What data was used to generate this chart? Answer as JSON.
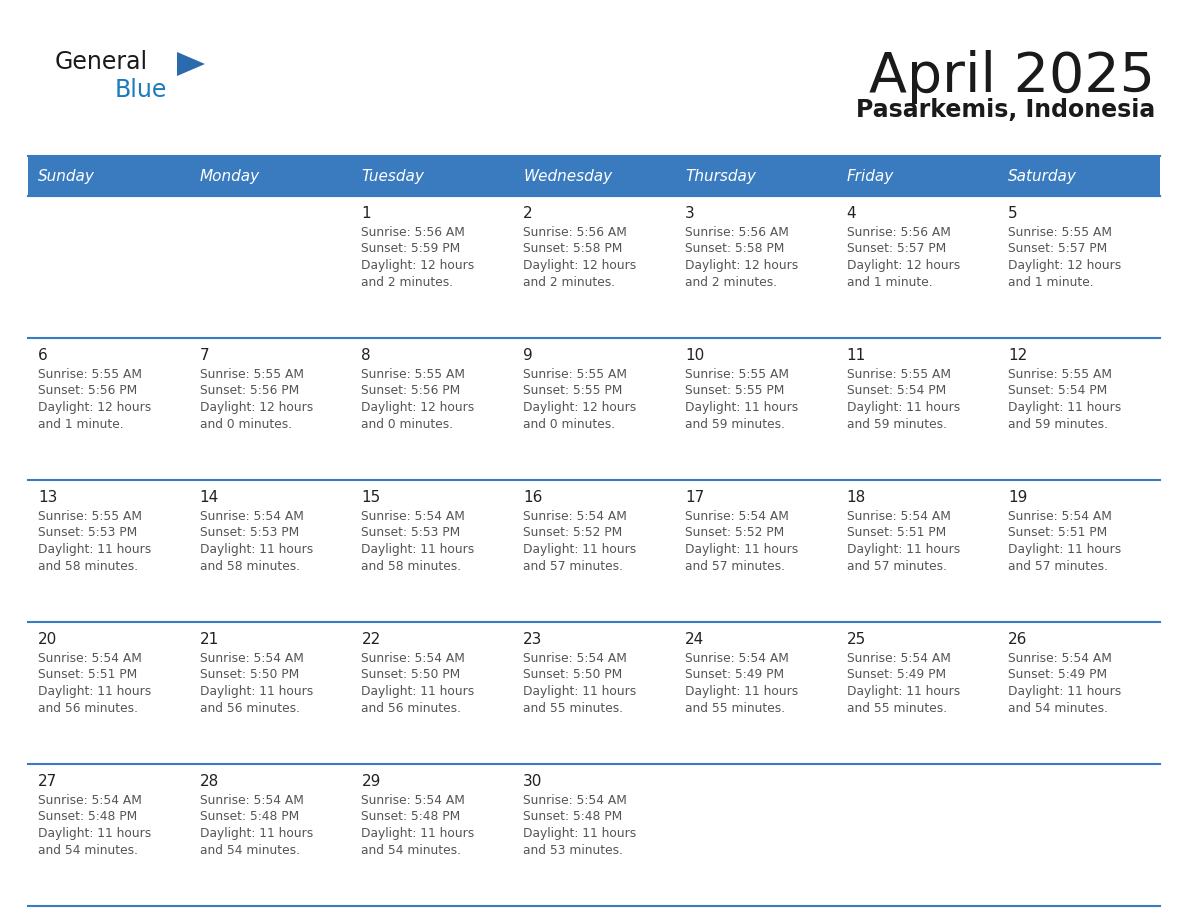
{
  "title": "April 2025",
  "subtitle": "Pasarkemis, Indonesia",
  "header_bg_color": "#3a7bbf",
  "header_text_color": "#ffffff",
  "border_color": "#3a7bbf",
  "day_names": [
    "Sunday",
    "Monday",
    "Tuesday",
    "Wednesday",
    "Thursday",
    "Friday",
    "Saturday"
  ],
  "title_color": "#1a1a1a",
  "subtitle_color": "#1a1a1a",
  "day_number_color": "#222222",
  "cell_text_color": "#555555",
  "logo_text_color": "#1a1a1a",
  "logo_blue_color": "#1a7bbf",
  "logo_triangle_color": "#2a6aad",
  "days": [
    {
      "day": 1,
      "col": 2,
      "row": 0,
      "sunrise": "5:56 AM",
      "sunset": "5:59 PM",
      "daylight_line1": "Daylight: 12 hours",
      "daylight_line2": "and 2 minutes."
    },
    {
      "day": 2,
      "col": 3,
      "row": 0,
      "sunrise": "5:56 AM",
      "sunset": "5:58 PM",
      "daylight_line1": "Daylight: 12 hours",
      "daylight_line2": "and 2 minutes."
    },
    {
      "day": 3,
      "col": 4,
      "row": 0,
      "sunrise": "5:56 AM",
      "sunset": "5:58 PM",
      "daylight_line1": "Daylight: 12 hours",
      "daylight_line2": "and 2 minutes."
    },
    {
      "day": 4,
      "col": 5,
      "row": 0,
      "sunrise": "5:56 AM",
      "sunset": "5:57 PM",
      "daylight_line1": "Daylight: 12 hours",
      "daylight_line2": "and 1 minute."
    },
    {
      "day": 5,
      "col": 6,
      "row": 0,
      "sunrise": "5:55 AM",
      "sunset": "5:57 PM",
      "daylight_line1": "Daylight: 12 hours",
      "daylight_line2": "and 1 minute."
    },
    {
      "day": 6,
      "col": 0,
      "row": 1,
      "sunrise": "5:55 AM",
      "sunset": "5:56 PM",
      "daylight_line1": "Daylight: 12 hours",
      "daylight_line2": "and 1 minute."
    },
    {
      "day": 7,
      "col": 1,
      "row": 1,
      "sunrise": "5:55 AM",
      "sunset": "5:56 PM",
      "daylight_line1": "Daylight: 12 hours",
      "daylight_line2": "and 0 minutes."
    },
    {
      "day": 8,
      "col": 2,
      "row": 1,
      "sunrise": "5:55 AM",
      "sunset": "5:56 PM",
      "daylight_line1": "Daylight: 12 hours",
      "daylight_line2": "and 0 minutes."
    },
    {
      "day": 9,
      "col": 3,
      "row": 1,
      "sunrise": "5:55 AM",
      "sunset": "5:55 PM",
      "daylight_line1": "Daylight: 12 hours",
      "daylight_line2": "and 0 minutes."
    },
    {
      "day": 10,
      "col": 4,
      "row": 1,
      "sunrise": "5:55 AM",
      "sunset": "5:55 PM",
      "daylight_line1": "Daylight: 11 hours",
      "daylight_line2": "and 59 minutes."
    },
    {
      "day": 11,
      "col": 5,
      "row": 1,
      "sunrise": "5:55 AM",
      "sunset": "5:54 PM",
      "daylight_line1": "Daylight: 11 hours",
      "daylight_line2": "and 59 minutes."
    },
    {
      "day": 12,
      "col": 6,
      "row": 1,
      "sunrise": "5:55 AM",
      "sunset": "5:54 PM",
      "daylight_line1": "Daylight: 11 hours",
      "daylight_line2": "and 59 minutes."
    },
    {
      "day": 13,
      "col": 0,
      "row": 2,
      "sunrise": "5:55 AM",
      "sunset": "5:53 PM",
      "daylight_line1": "Daylight: 11 hours",
      "daylight_line2": "and 58 minutes."
    },
    {
      "day": 14,
      "col": 1,
      "row": 2,
      "sunrise": "5:54 AM",
      "sunset": "5:53 PM",
      "daylight_line1": "Daylight: 11 hours",
      "daylight_line2": "and 58 minutes."
    },
    {
      "day": 15,
      "col": 2,
      "row": 2,
      "sunrise": "5:54 AM",
      "sunset": "5:53 PM",
      "daylight_line1": "Daylight: 11 hours",
      "daylight_line2": "and 58 minutes."
    },
    {
      "day": 16,
      "col": 3,
      "row": 2,
      "sunrise": "5:54 AM",
      "sunset": "5:52 PM",
      "daylight_line1": "Daylight: 11 hours",
      "daylight_line2": "and 57 minutes."
    },
    {
      "day": 17,
      "col": 4,
      "row": 2,
      "sunrise": "5:54 AM",
      "sunset": "5:52 PM",
      "daylight_line1": "Daylight: 11 hours",
      "daylight_line2": "and 57 minutes."
    },
    {
      "day": 18,
      "col": 5,
      "row": 2,
      "sunrise": "5:54 AM",
      "sunset": "5:51 PM",
      "daylight_line1": "Daylight: 11 hours",
      "daylight_line2": "and 57 minutes."
    },
    {
      "day": 19,
      "col": 6,
      "row": 2,
      "sunrise": "5:54 AM",
      "sunset": "5:51 PM",
      "daylight_line1": "Daylight: 11 hours",
      "daylight_line2": "and 57 minutes."
    },
    {
      "day": 20,
      "col": 0,
      "row": 3,
      "sunrise": "5:54 AM",
      "sunset": "5:51 PM",
      "daylight_line1": "Daylight: 11 hours",
      "daylight_line2": "and 56 minutes."
    },
    {
      "day": 21,
      "col": 1,
      "row": 3,
      "sunrise": "5:54 AM",
      "sunset": "5:50 PM",
      "daylight_line1": "Daylight: 11 hours",
      "daylight_line2": "and 56 minutes."
    },
    {
      "day": 22,
      "col": 2,
      "row": 3,
      "sunrise": "5:54 AM",
      "sunset": "5:50 PM",
      "daylight_line1": "Daylight: 11 hours",
      "daylight_line2": "and 56 minutes."
    },
    {
      "day": 23,
      "col": 3,
      "row": 3,
      "sunrise": "5:54 AM",
      "sunset": "5:50 PM",
      "daylight_line1": "Daylight: 11 hours",
      "daylight_line2": "and 55 minutes."
    },
    {
      "day": 24,
      "col": 4,
      "row": 3,
      "sunrise": "5:54 AM",
      "sunset": "5:49 PM",
      "daylight_line1": "Daylight: 11 hours",
      "daylight_line2": "and 55 minutes."
    },
    {
      "day": 25,
      "col": 5,
      "row": 3,
      "sunrise": "5:54 AM",
      "sunset": "5:49 PM",
      "daylight_line1": "Daylight: 11 hours",
      "daylight_line2": "and 55 minutes."
    },
    {
      "day": 26,
      "col": 6,
      "row": 3,
      "sunrise": "5:54 AM",
      "sunset": "5:49 PM",
      "daylight_line1": "Daylight: 11 hours",
      "daylight_line2": "and 54 minutes."
    },
    {
      "day": 27,
      "col": 0,
      "row": 4,
      "sunrise": "5:54 AM",
      "sunset": "5:48 PM",
      "daylight_line1": "Daylight: 11 hours",
      "daylight_line2": "and 54 minutes."
    },
    {
      "day": 28,
      "col": 1,
      "row": 4,
      "sunrise": "5:54 AM",
      "sunset": "5:48 PM",
      "daylight_line1": "Daylight: 11 hours",
      "daylight_line2": "and 54 minutes."
    },
    {
      "day": 29,
      "col": 2,
      "row": 4,
      "sunrise": "5:54 AM",
      "sunset": "5:48 PM",
      "daylight_line1": "Daylight: 11 hours",
      "daylight_line2": "and 54 minutes."
    },
    {
      "day": 30,
      "col": 3,
      "row": 4,
      "sunrise": "5:54 AM",
      "sunset": "5:48 PM",
      "daylight_line1": "Daylight: 11 hours",
      "daylight_line2": "and 53 minutes."
    }
  ]
}
